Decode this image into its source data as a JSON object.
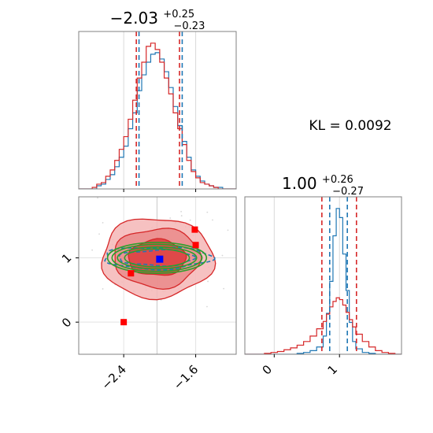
{
  "chart_data": [
    {
      "type": "histogram",
      "panel": "top-left",
      "title": {
        "value": "−2.03",
        "plus": "+0.25",
        "minus": "−0.23"
      },
      "xlim": [
        -2.9,
        -1.15
      ],
      "x_ticks": [
        -2.4,
        -1.6
      ],
      "x_tick_labels": [],
      "series": [
        {
          "name": "",
          "color": "#1f77b4",
          "bin_edges": [
            -2.9,
            -2.85,
            -2.8,
            -2.75,
            -2.7,
            -2.65,
            -2.6,
            -2.55,
            -2.5,
            -2.45,
            -2.4,
            -2.35,
            -2.3,
            -2.25,
            -2.2,
            -2.15,
            -2.1,
            -2.05,
            -2.0,
            -1.95,
            -1.9,
            -1.85,
            -1.8,
            -1.75,
            -1.7,
            -1.65,
            -1.6,
            -1.55,
            -1.5,
            -1.45,
            -1.4,
            -1.35,
            -1.3,
            -1.25,
            -1.2,
            -1.15
          ],
          "counts": [
            0,
            0,
            0,
            0,
            2,
            3,
            6,
            9,
            14,
            20,
            27,
            38,
            48,
            62,
            72,
            80,
            85,
            86,
            82,
            74,
            64,
            52,
            40,
            30,
            20,
            12,
            8,
            5,
            3,
            2,
            1,
            1,
            0,
            0,
            0
          ]
        },
        {
          "name": "",
          "color": "#d62728",
          "bin_edges": [
            -2.9,
            -2.85,
            -2.8,
            -2.75,
            -2.7,
            -2.65,
            -2.6,
            -2.55,
            -2.5,
            -2.45,
            -2.4,
            -2.35,
            -2.3,
            -2.25,
            -2.2,
            -2.15,
            -2.1,
            -2.05,
            -2.0,
            -1.95,
            -1.9,
            -1.85,
            -1.8,
            -1.75,
            -1.7,
            -1.65,
            -1.6,
            -1.55,
            -1.5,
            -1.45,
            -1.4,
            -1.35,
            -1.3,
            -1.25,
            -1.2,
            -1.15
          ],
          "counts": [
            0,
            0,
            0,
            1,
            3,
            4,
            8,
            12,
            18,
            25,
            33,
            44,
            56,
            70,
            80,
            90,
            92,
            88,
            80,
            70,
            60,
            48,
            38,
            28,
            18,
            11,
            7,
            4,
            3,
            2,
            1,
            0,
            0,
            0,
            0
          ]
        }
      ],
      "quantile_lines": [
        {
          "color": "#d62728",
          "x": [
            -2.26,
            -1.78
          ]
        },
        {
          "color": "#1f77b4",
          "x": [
            -2.23,
            -1.75
          ]
        }
      ]
    },
    {
      "type": "histogram",
      "panel": "bottom-right",
      "title": {
        "value": "1.00",
        "plus": "+0.26",
        "minus": "−0.27"
      },
      "xlim": [
        -0.45,
        1.95
      ],
      "x_ticks": [
        0,
        1
      ],
      "x_tick_labels": [
        "0",
        "1"
      ],
      "series": [
        {
          "name": "",
          "color": "#1f77b4",
          "bin_edges": [
            -0.45,
            -0.35,
            -0.25,
            -0.15,
            -0.05,
            0.05,
            0.15,
            0.25,
            0.35,
            0.45,
            0.55,
            0.65,
            0.75,
            0.8,
            0.85,
            0.9,
            0.95,
            1.0,
            1.05,
            1.1,
            1.15,
            1.2,
            1.25,
            1.35,
            1.45,
            1.55,
            1.65,
            1.75,
            1.85,
            1.95
          ],
          "counts": [
            0,
            0,
            0,
            0,
            0,
            0,
            0,
            0,
            1,
            2,
            4,
            8,
            20,
            45,
            80,
            130,
            160,
            150,
            110,
            70,
            35,
            14,
            6,
            2,
            1,
            0,
            0,
            0,
            0
          ]
        },
        {
          "name": "",
          "color": "#d62728",
          "bin_edges": [
            -0.45,
            -0.35,
            -0.25,
            -0.15,
            -0.05,
            0.05,
            0.15,
            0.25,
            0.35,
            0.45,
            0.55,
            0.65,
            0.75,
            0.8,
            0.85,
            0.9,
            0.95,
            1.0,
            1.05,
            1.1,
            1.15,
            1.2,
            1.25,
            1.35,
            1.45,
            1.55,
            1.65,
            1.75,
            1.85,
            1.95
          ],
          "counts": [
            0,
            0,
            0,
            1,
            2,
            3,
            5,
            7,
            10,
            14,
            20,
            28,
            36,
            44,
            52,
            58,
            62,
            60,
            54,
            46,
            38,
            30,
            22,
            14,
            8,
            4,
            2,
            1,
            0
          ]
        }
      ],
      "quantile_lines": [
        {
          "color": "#d62728",
          "x": [
            0.73,
            1.26
          ]
        },
        {
          "color": "#1f77b4",
          "x": [
            0.85,
            1.12
          ]
        }
      ]
    },
    {
      "type": "scatter-contour",
      "panel": "bottom-left",
      "xlim": [
        -2.9,
        -1.15
      ],
      "ylim": [
        -0.5,
        1.95
      ],
      "x_ticks": [
        -2.4,
        -1.6
      ],
      "x_tick_labels": [
        "−2.4",
        "−1.6"
      ],
      "y_ticks": [
        0,
        1
      ],
      "y_tick_labels": [
        "0",
        "1"
      ],
      "red_contours": [
        {
          "center": [
            -2.03,
            1.0
          ],
          "rx": 0.62,
          "ry": 0.62,
          "color": "#d62728",
          "fill": "#f4b6b6"
        },
        {
          "center": [
            -2.03,
            1.0
          ],
          "rx": 0.48,
          "ry": 0.46,
          "color": "#d62728",
          "fill": "#ea8a8a"
        },
        {
          "center": [
            -2.03,
            1.0
          ],
          "rx": 0.32,
          "ry": 0.28,
          "color": "#d62728",
          "fill": "#dd3c3c"
        }
      ],
      "blue_contours": [
        {
          "center": [
            -2.03,
            1.0
          ],
          "rx": 0.6,
          "ry": 0.17,
          "color": "#1f77b4"
        },
        {
          "center": [
            -2.03,
            1.0
          ],
          "rx": 0.42,
          "ry": 0.12,
          "color": "#1f77b4"
        }
      ],
      "green_ellipses": [
        {
          "center": [
            -2.03,
            1.0
          ],
          "rx": 0.55,
          "ry": 0.24,
          "color": "#2ca02c"
        },
        {
          "center": [
            -2.03,
            1.0
          ],
          "rx": 0.5,
          "ry": 0.21,
          "color": "#2ca02c"
        },
        {
          "center": [
            -2.03,
            1.0
          ],
          "rx": 0.44,
          "ry": 0.17,
          "color": "#2ca02c"
        },
        {
          "center": [
            -2.03,
            1.0
          ],
          "rx": 0.36,
          "ry": 0.14,
          "color": "#2ca02c"
        }
      ],
      "red_markers": [
        [
          -1.61,
          1.44
        ],
        [
          -1.6,
          1.2
        ],
        [
          -2.32,
          0.76
        ],
        [
          -2.4,
          0.0
        ]
      ],
      "blue_marker": [
        -2.0,
        0.98
      ],
      "gray_lines": {
        "x": -2.03,
        "y": 1.0
      }
    }
  ],
  "annotation": {
    "kl_text": "KL = 0.0092"
  }
}
